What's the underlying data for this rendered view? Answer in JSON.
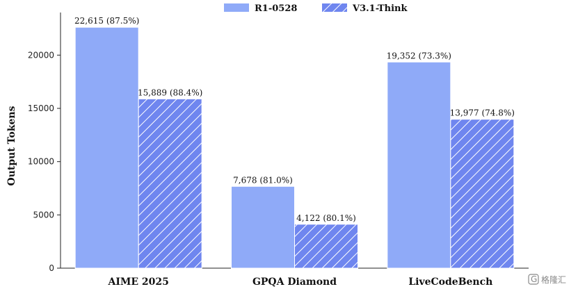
{
  "chart_data": {
    "type": "bar",
    "categories": [
      "AIME 2025",
      "GPQA Diamond",
      "LiveCodeBench"
    ],
    "series": [
      {
        "name": "R1-0528",
        "values": [
          22615,
          7678,
          19352
        ],
        "labels": [
          "22,615 (87.5%)",
          "7,678 (81.0%)",
          "19,352 (73.3%)"
        ],
        "color": "#8faaf8",
        "pattern": "solid"
      },
      {
        "name": "V3.1-Think",
        "values": [
          15889,
          4122,
          13977
        ],
        "labels": [
          "15,889 (88.4%)",
          "4,122 (80.1%)",
          "13,977 (74.8%)"
        ],
        "color": "#6f86ef",
        "pattern": "hatched"
      }
    ],
    "ylabel": "Output Tokens",
    "xlabel": "",
    "ylim": [
      0,
      24000
    ],
    "yticks": [
      0,
      5000,
      10000,
      15000,
      20000
    ],
    "grid": false,
    "legend_position": "top-center"
  },
  "watermark": {
    "text": "格隆汇",
    "logo_text": "G"
  }
}
